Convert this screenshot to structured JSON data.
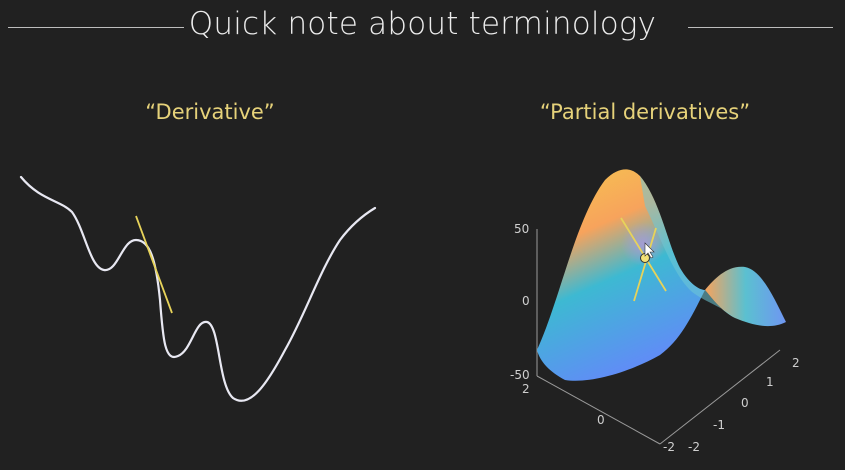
{
  "slide": {
    "title": "Quick note about terminology",
    "left_heading": "“Derivative”",
    "right_heading": "“Partial derivatives”"
  },
  "plot3d": {
    "z_ticks": [
      "50",
      "0",
      "-50"
    ],
    "x_ticks": [
      "2",
      "0",
      "-2"
    ],
    "y_ticks": [
      "2",
      "1",
      "0",
      "-1",
      "-2"
    ]
  },
  "colors": {
    "background": "#212121",
    "heading": "#e6d27a",
    "curve": "#e8e8f2",
    "tangent": "#e7d35a"
  }
}
